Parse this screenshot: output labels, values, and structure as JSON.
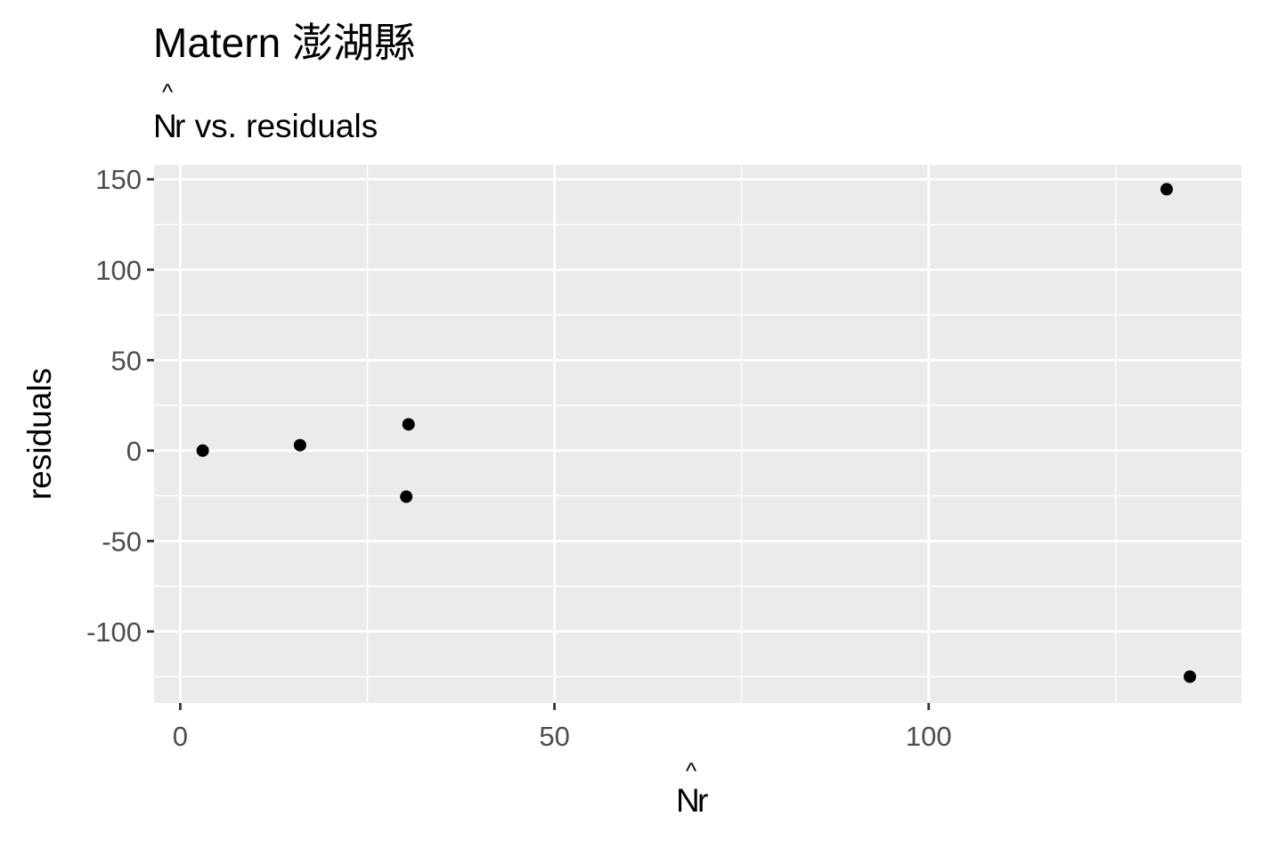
{
  "chart_data": {
    "type": "scatter",
    "title": "Matern 澎湖縣",
    "subtitle": "r vs. residuals",
    "subtitle_hat_letter": "N",
    "xlabel": "r",
    "xlabel_hat_letter": "N",
    "ylabel": "residuals",
    "hat_glyph": "^",
    "xlim": [
      -3.5,
      141.8
    ],
    "ylim": [
      -139.5,
      158
    ],
    "x_ticks": [
      0,
      50,
      100
    ],
    "x_tick_labels": [
      "0",
      "50",
      "100"
    ],
    "x_minor_ticks": [
      25,
      75,
      125
    ],
    "y_ticks": [
      -100,
      -50,
      0,
      50,
      100,
      150
    ],
    "y_tick_labels": [
      "-100",
      "-50",
      "0",
      "50",
      "100",
      "150"
    ],
    "y_minor_ticks": [
      -125,
      -75,
      -25,
      25,
      75,
      125
    ],
    "grid": true,
    "legend": "none",
    "point_color": "#000000",
    "panel_background": "#ebebeb",
    "grid_color": "#ffffff",
    "points": [
      {
        "x": 3,
        "y": 0
      },
      {
        "x": 16,
        "y": 3
      },
      {
        "x": 30.2,
        "y": -25.5
      },
      {
        "x": 30.5,
        "y": 14.5
      },
      {
        "x": 131.8,
        "y": 144.5
      },
      {
        "x": 134.9,
        "y": -125
      }
    ]
  }
}
